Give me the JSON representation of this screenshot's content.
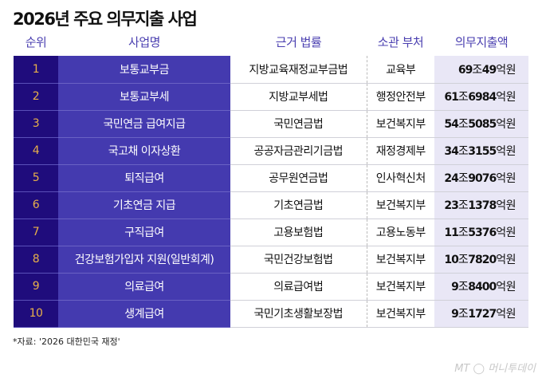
{
  "title": "2026년 주요 의무지출 사업",
  "headers": [
    "순위",
    "사업명",
    "근거 법률",
    "소관 부처",
    "의무지출액"
  ],
  "rows": [
    {
      "rank": "1",
      "name": "보통교부금",
      "law": "지방교육재정교부금법",
      "ministry": "교육부",
      "jo": "69",
      "eok": "49"
    },
    {
      "rank": "2",
      "name": "보통교부세",
      "law": "지방교부세법",
      "ministry": "행정안전부",
      "jo": "61",
      "eok": "6984"
    },
    {
      "rank": "3",
      "name": "국민연금 급여지급",
      "law": "국민연금법",
      "ministry": "보건복지부",
      "jo": "54",
      "eok": "5085"
    },
    {
      "rank": "4",
      "name": "국고채 이자상환",
      "law": "공공자금관리기금법",
      "ministry": "재정경제부",
      "jo": "34",
      "eok": "3155"
    },
    {
      "rank": "5",
      "name": "퇴직급여",
      "law": "공무원연금법",
      "ministry": "인사혁신처",
      "jo": "24",
      "eok": "9076"
    },
    {
      "rank": "6",
      "name": "기초연금 지급",
      "law": "기초연금법",
      "ministry": "보건복지부",
      "jo": "23",
      "eok": "1378"
    },
    {
      "rank": "7",
      "name": "구직급여",
      "law": "고용보험법",
      "ministry": "고용노동부",
      "jo": "11",
      "eok": "5376"
    },
    {
      "rank": "8",
      "name": "건강보험가입자 지원(일반회계)",
      "law": "국민건강보험법",
      "ministry": "보건복지부",
      "jo": "10",
      "eok": "7820"
    },
    {
      "rank": "9",
      "name": "의료급여",
      "law": "의료급여법",
      "ministry": "보건복지부",
      "jo": "9",
      "eok": "8400"
    },
    {
      "rank": "10",
      "name": "생계급여",
      "law": "국민기초생활보장법",
      "ministry": "보건복지부",
      "jo": "9",
      "eok": "1727"
    }
  ],
  "unit_jo": "조",
  "unit_eok": "억원",
  "source": "*자료: '2026 대한민국 재정'",
  "logo": "MT 머니투데이",
  "colors": {
    "rank_bg": "#1f0c7c",
    "name_bg": "#443aaf",
    "rank_text": "#e8b04a",
    "amount_bg": "#e9e7f6",
    "header_text": "#4a3fb0"
  }
}
